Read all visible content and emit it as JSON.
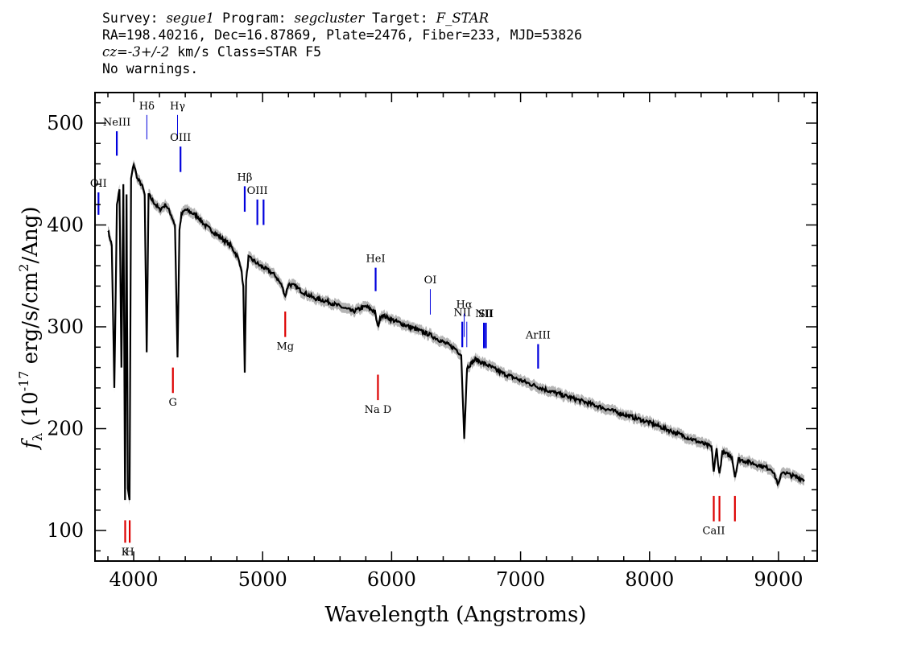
{
  "header": {
    "line1": {
      "survey_label": "Survey: ",
      "survey": "segue1",
      "program_label": " Program: ",
      "program": "segcluster",
      "target_label": " Target: ",
      "target": "F_STAR"
    },
    "line2": "RA=198.40216, Dec=16.87869, Plate=2476, Fiber=233, MJD=53826",
    "line3": {
      "cz": "cz",
      "value": "=-3+/-2",
      "rest": " km/s Class=STAR F5"
    },
    "line4": "No warnings."
  },
  "colors": {
    "emission": "#0000dd",
    "absorption": "#dd0000",
    "spectrum": "#000000",
    "error_band": "#b4b4b4"
  },
  "chart_data": {
    "type": "line",
    "xlabel": "Wavelength (Angstroms)",
    "ylabel_parts": {
      "f": "f",
      "sub": "λ",
      "open": " (10",
      "exp1": "-17",
      "mid": " erg/s/cm",
      "exp2": "2",
      "close": "/Ang)"
    },
    "xlim": [
      3700,
      9300
    ],
    "ylim": [
      70,
      530
    ],
    "xticks": [
      4000,
      5000,
      6000,
      7000,
      8000,
      9000
    ],
    "yticks": [
      100,
      200,
      300,
      400,
      500
    ],
    "series": [
      {
        "x": [
          3800,
          3830,
          3850,
          3870,
          3890,
          3905,
          3920,
          3933,
          3945,
          3955,
          3968,
          3980,
          4000,
          4030,
          4060,
          4085,
          4101,
          4115,
          4140,
          4170,
          4200,
          4250,
          4290,
          4320,
          4340,
          4355,
          4370,
          4400,
          4450,
          4500,
          4550,
          4600,
          4650,
          4700,
          4750,
          4800,
          4830,
          4850,
          4861,
          4872,
          4890,
          4930,
          4980,
          5050,
          5100,
          5150,
          5175,
          5200,
          5250,
          5300,
          5400,
          5500,
          5600,
          5700,
          5800,
          5870,
          5893,
          5920,
          6000,
          6100,
          6200,
          6300,
          6400,
          6500,
          6540,
          6563,
          6585,
          6650,
          6750,
          6850,
          6950,
          7050,
          7200,
          7400,
          7600,
          7800,
          8000,
          8200,
          8400,
          8480,
          8498,
          8520,
          8542,
          8565,
          8640,
          8662,
          8690,
          8800,
          8950,
          9000,
          9030,
          9100,
          9200
        ],
        "y": [
          395,
          380,
          240,
          420,
          435,
          260,
          440,
          130,
          430,
          140,
          130,
          445,
          460,
          445,
          440,
          430,
          275,
          430,
          425,
          420,
          415,
          420,
          410,
          400,
          270,
          395,
          410,
          415,
          412,
          408,
          400,
          395,
          390,
          385,
          380,
          370,
          360,
          340,
          255,
          345,
          368,
          365,
          360,
          355,
          350,
          340,
          330,
          342,
          340,
          335,
          328,
          325,
          320,
          315,
          320,
          315,
          300,
          312,
          307,
          302,
          297,
          292,
          285,
          278,
          272,
          190,
          260,
          268,
          262,
          255,
          250,
          245,
          238,
          230,
          222,
          214,
          206,
          196,
          186,
          182,
          158,
          180,
          155,
          177,
          172,
          153,
          170,
          166,
          160,
          145,
          158,
          154,
          150
        ]
      }
    ],
    "emission_lines": [
      {
        "label": "OII",
        "wave": 3727,
        "y1": 410,
        "y2": 432
      },
      {
        "label": "NeIII",
        "wave": 3869,
        "y1": 468,
        "y2": 492
      },
      {
        "label": "Hδ",
        "wave": 4102,
        "y1": 484,
        "y2": 508,
        "thin": true
      },
      {
        "label": "Hγ",
        "wave": 4340,
        "y1": 484,
        "y2": 508,
        "thin": true
      },
      {
        "label": "OIII",
        "wave": 4363,
        "y1": 452,
        "y2": 477
      },
      {
        "label": "Hβ",
        "wave": 4861,
        "y1": 413,
        "y2": 438
      },
      {
        "label": "OIII",
        "wave": 4959,
        "y1": 400,
        "y2": 425
      },
      {
        "label": "",
        "wave": 5007,
        "y1": 400,
        "y2": 425
      },
      {
        "label": "HeI",
        "wave": 5876,
        "y1": 335,
        "y2": 358
      },
      {
        "label": "OI",
        "wave": 6300,
        "y1": 312,
        "y2": 337,
        "thin": true
      },
      {
        "label": "NII",
        "wave": 6548,
        "y1": 280,
        "y2": 305
      },
      {
        "label": "Hα",
        "wave": 6563,
        "y1": 290,
        "y2": 313,
        "thin": true
      },
      {
        "label": "",
        "wave": 6583,
        "y1": 280,
        "y2": 305,
        "thin": true
      },
      {
        "label": "NII",
        "wave": 6716,
        "y1": 279,
        "y2": 304
      },
      {
        "label": "SII",
        "wave": 6731,
        "y1": 279,
        "y2": 304
      },
      {
        "label": "ArIII",
        "wave": 7136,
        "y1": 259,
        "y2": 283
      }
    ],
    "absorption_lines": [
      {
        "label": "K",
        "wave": 3934,
        "y1": 88,
        "y2": 110
      },
      {
        "label": "H",
        "wave": 3969,
        "y1": 88,
        "y2": 110
      },
      {
        "label": "G",
        "wave": 4304,
        "y1": 235,
        "y2": 260
      },
      {
        "label": "Mg",
        "wave": 5175,
        "y1": 290,
        "y2": 315
      },
      {
        "label": "Na D",
        "wave": 5894,
        "y1": 228,
        "y2": 253
      },
      {
        "label": "CaII",
        "wave": 8498,
        "y1": 109,
        "y2": 134
      },
      {
        "label": "",
        "wave": 8542,
        "y1": 109,
        "y2": 134
      },
      {
        "label": "",
        "wave": 8662,
        "y1": 109,
        "y2": 134
      }
    ]
  }
}
